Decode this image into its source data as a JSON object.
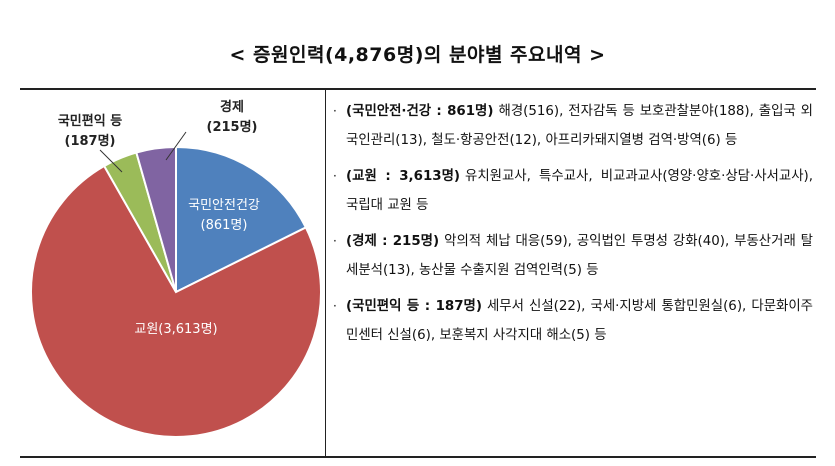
{
  "title": "< 증원인력(4,876명)의 분야별 주요내역 >",
  "chart_data": {
    "type": "pie",
    "total": 4876,
    "slices": [
      {
        "name": "국민안전·건강",
        "chart_label": "국민안전건강",
        "value_label": "(861명)",
        "value": 861,
        "color": "#4f81bd"
      },
      {
        "name": "교원",
        "chart_label": "교원(3,613명)",
        "value_label": "",
        "value": 3613,
        "color": "#c0504d"
      },
      {
        "name": "국민편익 등",
        "chart_label": "국민편익 등",
        "value_label": "(187명)",
        "value": 187,
        "color": "#9bbb59"
      },
      {
        "name": "경제",
        "chart_label": "경제",
        "value_label": "(215명)",
        "value": 215,
        "color": "#8064a2"
      }
    ]
  },
  "details": [
    {
      "bullet": "·",
      "head": "(국민안전·건강 : 861명)",
      "text": "해경(516), 전자감독 등 보호관찰분야(188), 출입국 외국인관리(13), 철도·항공안전(12), 아프리카돼지열병 검역·방역(6) 등"
    },
    {
      "bullet": "·",
      "head": "(교원 : 3,613명)",
      "text": "유치원교사, 특수교사, 비교과교사(영양·양호·상담·사서교사), 국립대 교원 등"
    },
    {
      "bullet": "·",
      "head": "(경제 : 215명)",
      "text": "악의적 체납 대응(59), 공익법인 투명성 강화(40), 부동산거래 탈세분석(13), 농산물 수출지원 검역인력(5) 등"
    },
    {
      "bullet": "·",
      "head": "(국민편익 등 : 187명)",
      "text": "세무서 신설(22), 국세·지방세 통합민원실(6), 다문화이주민센터 신설(6), 보훈복지 사각지대 해소(5) 등"
    }
  ]
}
